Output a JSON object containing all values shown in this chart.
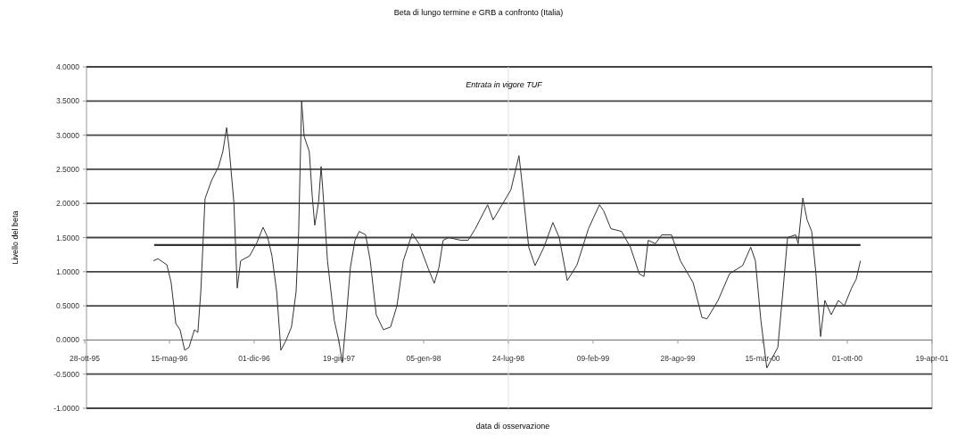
{
  "chart_data": {
    "type": "line",
    "title": "Beta di lungo termine e GRB a confronto (Italia)",
    "xlabel": "data di osservazione",
    "ylabel": "Livello del beta",
    "xlim": [
      "1995-10-28",
      "2001-04-19"
    ],
    "xticks": [
      {
        "value": "1995-10-28",
        "label": "28-ott-95"
      },
      {
        "value": "1996-05-15",
        "label": "15-mag-96"
      },
      {
        "value": "1996-12-01",
        "label": "01-dic-96"
      },
      {
        "value": "1997-06-19",
        "label": "19-giu-97"
      },
      {
        "value": "1998-01-05",
        "label": "05-gen-98"
      },
      {
        "value": "1998-07-24",
        "label": "24-lug-98"
      },
      {
        "value": "1999-02-09",
        "label": "09-feb-99"
      },
      {
        "value": "1999-08-28",
        "label": "28-ago-99"
      },
      {
        "value": "2000-03-15",
        "label": "15-mar-00"
      },
      {
        "value": "2000-10-01",
        "label": "01-ott-00"
      },
      {
        "value": "2001-04-19",
        "label": "19-apr-01"
      }
    ],
    "ylim": [
      -1,
      4
    ],
    "yticks": [
      {
        "value": -1,
        "label": "-1.0000"
      },
      {
        "value": -0.5,
        "label": "-0.5000"
      },
      {
        "value": 0,
        "label": "0.0000"
      },
      {
        "value": 0.5,
        "label": "0.5000"
      },
      {
        "value": 1,
        "label": "1.0000"
      },
      {
        "value": 1.5,
        "label": "1.5000"
      },
      {
        "value": 2,
        "label": "2.0000"
      },
      {
        "value": 2.5,
        "label": "2.5000"
      },
      {
        "value": 3,
        "label": "3.0000"
      },
      {
        "value": 3.5,
        "label": "3.5000"
      },
      {
        "value": 4,
        "label": "4.0000"
      }
    ],
    "grid": "y",
    "marker": "none",
    "line_style": "solid",
    "ref_lines": [
      {
        "axis": "x",
        "value": "1998-07-24",
        "label": "Entrata in vigore TUF",
        "color": "#dddddd"
      }
    ],
    "series": [
      {
        "color": "#333333",
        "x": [
          "1996-04-07",
          "1996-04-18",
          "1996-05-09",
          "1996-05-19",
          "1996-05-30",
          "1996-06-09",
          "1996-06-20",
          "1996-06-30",
          "1996-07-13",
          "1996-07-21",
          "1996-07-28",
          "1996-08-07",
          "1996-08-22",
          "1996-09-08",
          "1996-09-18",
          "1996-09-27",
          "1996-10-03",
          "1996-10-14",
          "1996-10-22",
          "1996-10-30",
          "1996-11-20",
          "1996-12-07",
          "1996-12-22",
          "1997-01-02",
          "1997-01-12",
          "1997-01-23",
          "1997-02-02",
          "1997-02-13",
          "1997-02-27",
          "1997-03-10",
          "1997-03-16",
          "1997-03-23",
          "1997-03-29",
          "1997-04-10",
          "1997-04-17",
          "1997-04-23",
          "1997-05-02",
          "1997-05-08",
          "1997-05-14",
          "1997-05-23",
          "1997-06-08",
          "1997-06-19",
          "1997-06-27",
          "1997-07-06",
          "1997-07-16",
          "1997-07-27",
          "1997-08-06",
          "1997-08-21",
          "1997-09-01",
          "1997-09-15",
          "1997-10-02",
          "1997-10-19",
          "1997-11-03",
          "1997-11-18",
          "1997-12-09",
          "1997-12-25",
          "1998-01-15",
          "1998-01-30",
          "1998-02-10",
          "1998-02-20",
          "1998-03-05",
          "1998-04-03",
          "1998-04-20",
          "1998-05-07",
          "1998-06-05",
          "1998-06-18",
          "1998-07-09",
          "1998-07-30",
          "1998-08-18",
          "1998-08-24",
          "1998-09-10",
          "1998-09-25",
          "1998-10-16",
          "1998-11-06",
          "1998-11-21",
          "1998-12-10",
          "1999-01-02",
          "1999-01-29",
          "1999-02-24",
          "1999-03-06",
          "1999-03-23",
          "1999-04-17",
          "1999-05-08",
          "1999-05-29",
          "1999-06-09",
          "1999-06-19",
          "1999-07-06",
          "1999-07-21",
          "1999-08-13",
          "1999-09-03",
          "1999-10-03",
          "1999-10-24",
          "1999-11-05",
          "1999-12-01",
          "1999-12-28",
          "2000-01-28",
          "2000-02-16",
          "2000-02-27",
          "2000-03-11",
          "2000-03-25",
          "2000-04-20",
          "2000-05-02",
          "2000-05-13",
          "2000-06-01",
          "2000-06-07",
          "2000-06-18",
          "2000-06-28",
          "2000-07-09",
          "2000-07-19",
          "2000-07-30",
          "2000-08-09",
          "2000-08-24",
          "2000-09-10",
          "2000-09-24",
          "2000-10-11",
          "2000-10-22",
          "2000-11-01"
        ],
        "values": [
          1.16,
          1.19,
          1.1,
          0.84,
          0.24,
          0.15,
          -0.15,
          -0.11,
          0.15,
          0.11,
          0.71,
          2.07,
          2.33,
          2.54,
          2.76,
          3.11,
          2.8,
          2.02,
          0.76,
          1.16,
          1.23,
          1.42,
          1.65,
          1.5,
          1.23,
          0.71,
          -0.15,
          -0.02,
          0.19,
          0.71,
          1.59,
          3.5,
          2.98,
          2.76,
          2.11,
          1.68,
          2.02,
          2.54,
          2.02,
          1.16,
          0.29,
          -0.02,
          -0.33,
          0.29,
          1.06,
          1.46,
          1.59,
          1.54,
          1.16,
          0.37,
          0.15,
          0.19,
          0.5,
          1.16,
          1.56,
          1.41,
          1.06,
          0.83,
          1.06,
          1.46,
          1.5,
          1.46,
          1.46,
          1.63,
          1.98,
          1.76,
          1.98,
          2.2,
          2.7,
          2.37,
          1.36,
          1.09,
          1.36,
          1.72,
          1.5,
          0.87,
          1.1,
          1.63,
          1.98,
          1.89,
          1.63,
          1.59,
          1.36,
          0.97,
          0.93,
          1.46,
          1.41,
          1.54,
          1.54,
          1.16,
          0.84,
          0.33,
          0.31,
          0.58,
          0.97,
          1.09,
          1.36,
          1.16,
          0.29,
          -0.41,
          -0.11,
          0.71,
          1.5,
          1.54,
          1.41,
          2.08,
          1.76,
          1.59,
          0.97,
          0.05,
          0.58,
          0.37,
          0.58,
          0.5,
          0.76,
          0.89,
          1.16
        ]
      },
      {
        "color": "#333333",
        "x": [
          "1996-04-09",
          "2000-11-01"
        ],
        "values": [
          1.39,
          1.39
        ]
      }
    ]
  }
}
